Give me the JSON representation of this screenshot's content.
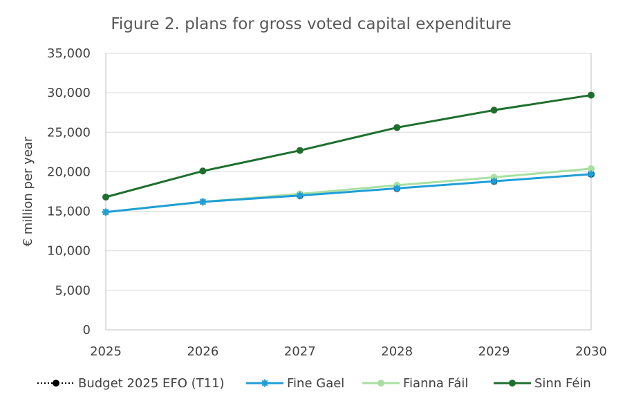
{
  "chart_data": {
    "type": "line",
    "title": "Figure 2. plans for gross voted capital expenditure",
    "xlabel": "",
    "ylabel": "€ million per year",
    "ylim": [
      0,
      35000
    ],
    "yticks": [
      0,
      5000,
      10000,
      15000,
      20000,
      25000,
      30000,
      35000
    ],
    "ytick_labels": [
      "0",
      "5,000",
      "10,000",
      "15,000",
      "20,000",
      "25,000",
      "30,000",
      "35,000"
    ],
    "x": [
      "2025",
      "2026",
      "2027",
      "2028",
      "2029",
      "2030"
    ],
    "grid": true,
    "legend_position": "bottom",
    "series": [
      {
        "name": "Budget 2025 EFO (T11)",
        "color": "#000000",
        "style": "dotted",
        "marker": "circle",
        "values": [
          14900,
          16200,
          17000,
          17900,
          18800,
          19700
        ]
      },
      {
        "name": "Fine Gael",
        "color": "#1f9ed8",
        "style": "solid",
        "marker": "star",
        "values": [
          14900,
          16200,
          17000,
          17900,
          18800,
          19700
        ]
      },
      {
        "name": "Fianna Fáil",
        "color": "#a9e0a1",
        "style": "solid",
        "marker": "circle",
        "values": [
          14900,
          16200,
          17200,
          18300,
          19300,
          20400
        ]
      },
      {
        "name": "Sinn Féin",
        "color": "#1e6f2e",
        "style": "solid",
        "marker": "circle",
        "values": [
          16800,
          20100,
          22700,
          25600,
          27800,
          29700
        ]
      }
    ]
  }
}
